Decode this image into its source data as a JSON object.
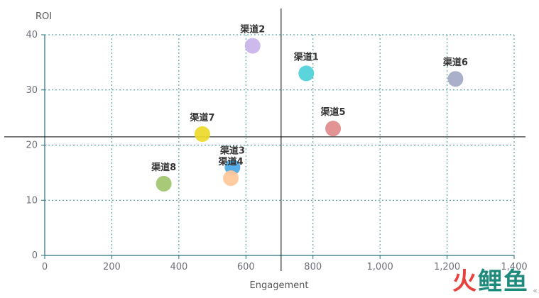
{
  "chart_data": {
    "type": "scatter",
    "xlabel": "Engagement",
    "ylabel": "ROI",
    "xlim": [
      0,
      1400
    ],
    "ylim": [
      0,
      40
    ],
    "x_ticks": [
      "0",
      "200",
      "400",
      "600",
      "800",
      "1,000",
      "1,200",
      "1,400"
    ],
    "y_ticks": [
      "0",
      "10",
      "20",
      "30",
      "40"
    ],
    "grid": true,
    "reference_lines": {
      "x": 705,
      "y": 21.5
    },
    "points": [
      {
        "label": "渠道1",
        "x": 780,
        "y": 33,
        "color": "#4dd0d8"
      },
      {
        "label": "渠道2",
        "x": 620,
        "y": 38,
        "color": "#c9b3ea"
      },
      {
        "label": "渠道3",
        "x": 560,
        "y": 16,
        "color": "#4aa8e6"
      },
      {
        "label": "渠道4",
        "x": 555,
        "y": 14,
        "color": "#ffc89a"
      },
      {
        "label": "渠道5",
        "x": 860,
        "y": 23,
        "color": "#df8b8b"
      },
      {
        "label": "渠道6",
        "x": 1225,
        "y": 32,
        "color": "#a3a9c4"
      },
      {
        "label": "渠道7",
        "x": 470,
        "y": 22,
        "color": "#ecd929"
      },
      {
        "label": "渠道8",
        "x": 355,
        "y": 13,
        "color": "#a0c46c"
      }
    ]
  },
  "watermark": {
    "part1": "火",
    "part2": "鲤鱼"
  },
  "corner_glyph": "«"
}
